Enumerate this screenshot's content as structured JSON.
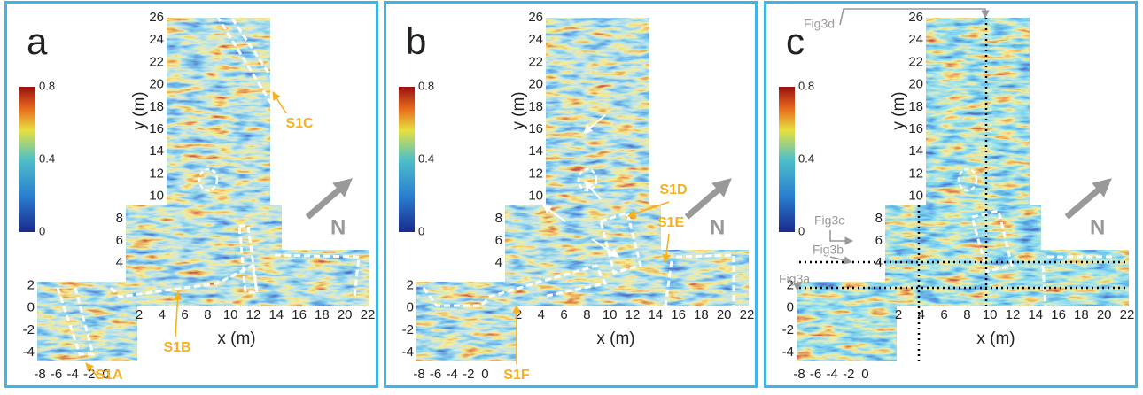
{
  "panels": [
    {
      "label": "a",
      "x_axis_label": "x (m)",
      "y_axis_label": "y (m)",
      "annotations": [
        "S1A",
        "S1B",
        "S1C"
      ]
    },
    {
      "label": "b",
      "x_axis_label": "x (m)",
      "y_axis_label": "y (m)",
      "annotations": [
        "S1D",
        "S1E",
        "S1F"
      ]
    },
    {
      "label": "c",
      "x_axis_label": "x (m)",
      "y_axis_label": "y (m)",
      "annotations": [
        "Fig3d",
        "Fig3c",
        "Fig3b",
        "Fig3a"
      ]
    }
  ],
  "colorbar_ticks": [
    0.8,
    0.4,
    0
  ],
  "x_ticks_left": [
    -8,
    -6,
    -4,
    -2,
    0
  ],
  "x_ticks_main": [
    2,
    4,
    6,
    8,
    10,
    12,
    14,
    16,
    18,
    20,
    22
  ],
  "y_ticks": [
    26,
    24,
    22,
    20,
    18,
    16,
    14,
    12,
    10,
    8,
    6,
    4,
    2,
    0,
    -2,
    -4
  ],
  "compass": "N"
}
